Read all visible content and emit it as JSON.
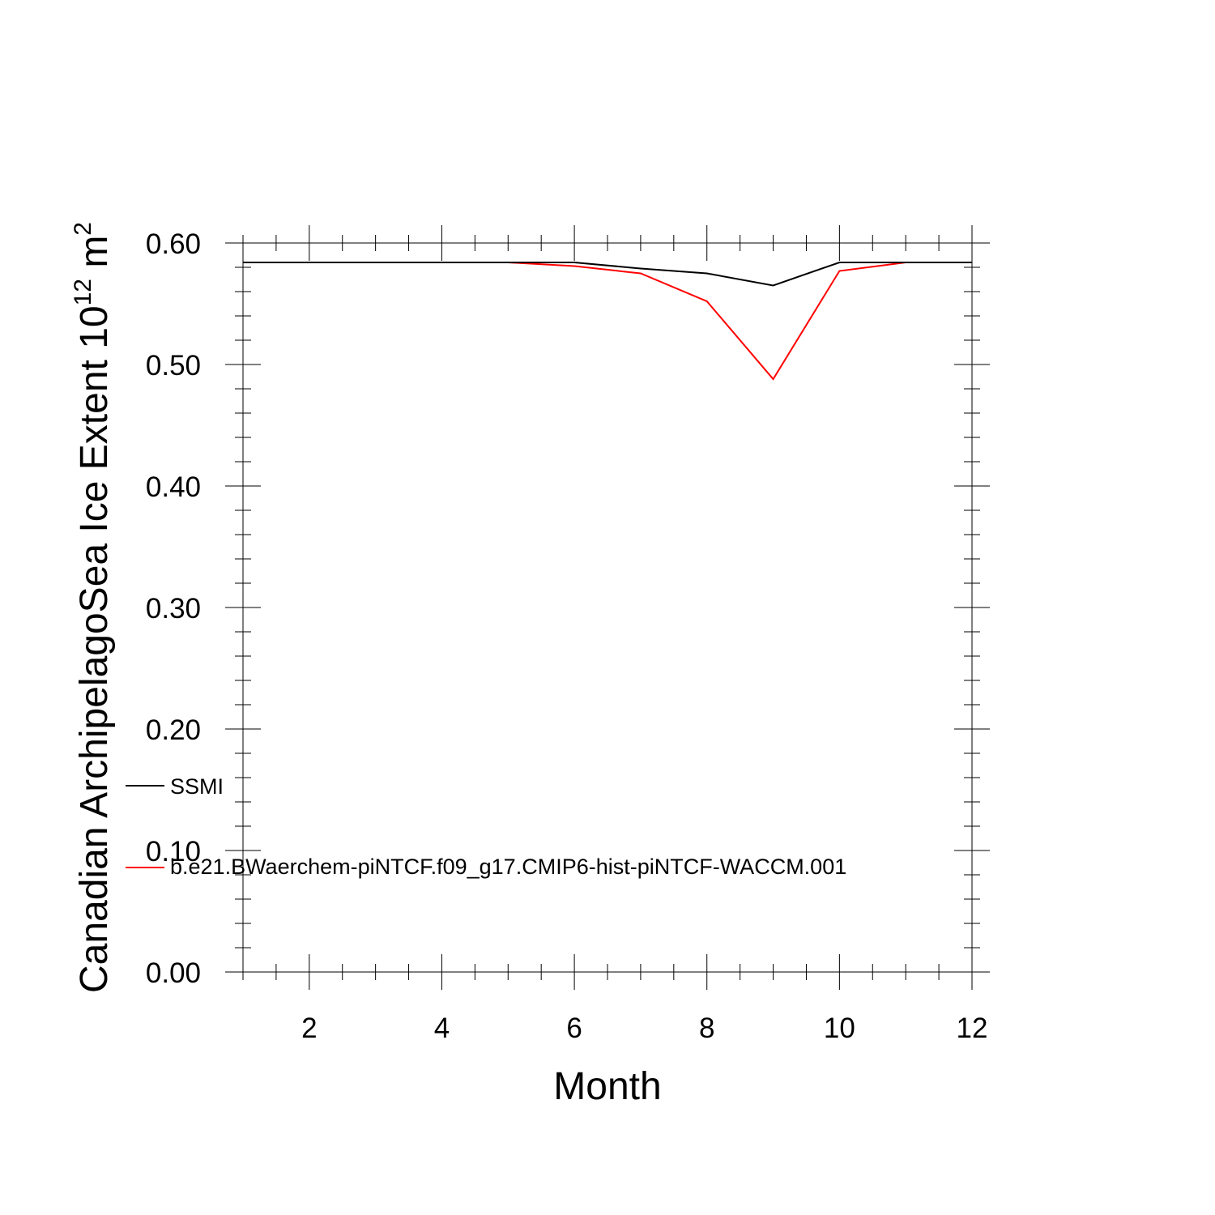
{
  "chart_data": {
    "type": "line",
    "xlabel": "Month",
    "ylabel": {
      "main": "Canadian ArchipelagoSea Ice Extent 10",
      "exponent": "12",
      "unit": " m",
      "unit_exponent": "2"
    },
    "xlim": [
      1,
      12
    ],
    "ylim": [
      0.0,
      0.6
    ],
    "x_ticks": [
      2,
      4,
      6,
      8,
      10,
      12
    ],
    "y_ticks": [
      0.0,
      0.1,
      0.2,
      0.3,
      0.4,
      0.5,
      0.6
    ],
    "y_tick_labels": [
      "0.00",
      "0.10",
      "0.20",
      "0.30",
      "0.40",
      "0.50",
      "0.60"
    ],
    "grid": false,
    "legend_position": "left-inside",
    "x": [
      1,
      2,
      3,
      4,
      5,
      6,
      7,
      8,
      9,
      10,
      11,
      12
    ],
    "series": [
      {
        "name": "SSMI",
        "color": "#000000",
        "values": [
          0.584,
          0.584,
          0.584,
          0.584,
          0.584,
          0.584,
          0.579,
          0.575,
          0.565,
          0.584,
          0.584,
          0.584
        ]
      },
      {
        "name": "b.e21.BWaerchem-piNTCF.f09_g17.CMIP6-hist-piNTCF-WACCM.001",
        "color": "#ff0000",
        "values": [
          0.584,
          0.584,
          0.584,
          0.584,
          0.584,
          0.581,
          0.575,
          0.552,
          0.488,
          0.577,
          0.584,
          0.584
        ]
      }
    ]
  }
}
